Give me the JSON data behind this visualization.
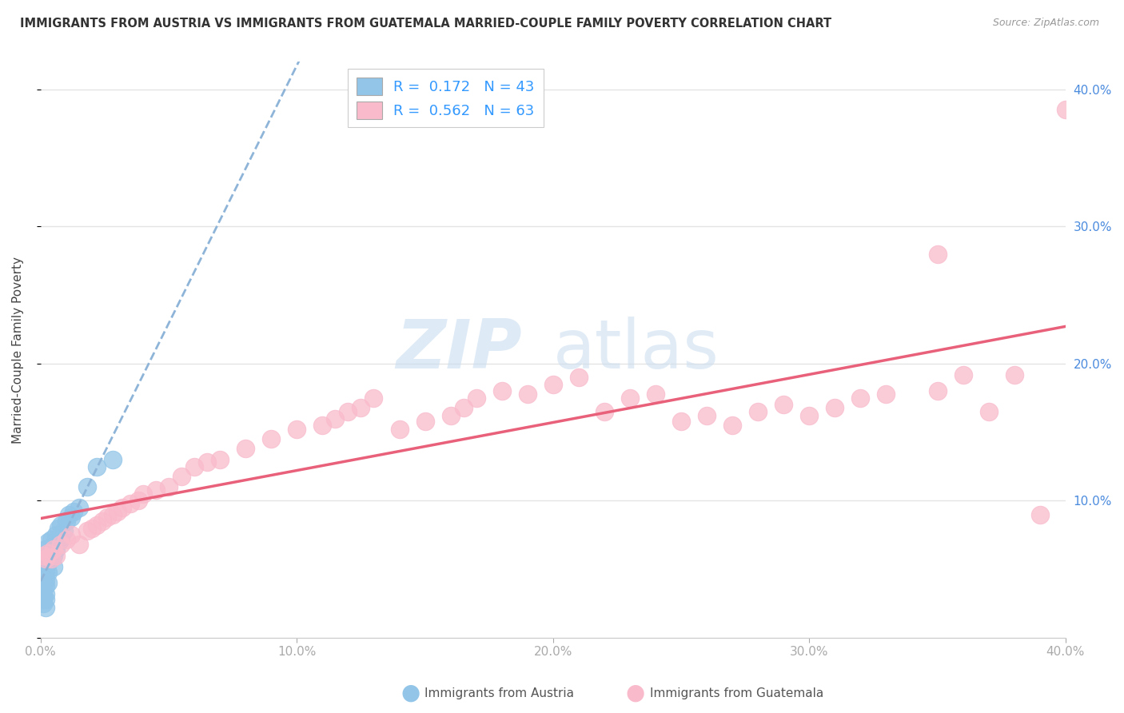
{
  "title": "IMMIGRANTS FROM AUSTRIA VS IMMIGRANTS FROM GUATEMALA MARRIED-COUPLE FAMILY POVERTY CORRELATION CHART",
  "source": "Source: ZipAtlas.com",
  "ylabel": "Married-Couple Family Poverty",
  "xlim": [
    0.0,
    0.4
  ],
  "ylim": [
    0.0,
    0.42
  ],
  "xticks": [
    0.0,
    0.1,
    0.2,
    0.3,
    0.4
  ],
  "yticks": [
    0.1,
    0.2,
    0.3,
    0.4
  ],
  "xticklabels": [
    "0.0%",
    "10.0%",
    "20.0%",
    "30.0%",
    "40.0%"
  ],
  "right_yticklabels": [
    "10.0%",
    "20.0%",
    "30.0%",
    "40.0%"
  ],
  "legend_labels": [
    "Immigrants from Austria",
    "Immigrants from Guatemala"
  ],
  "austria_color": "#92C5E8",
  "guatemala_color": "#F9BBCC",
  "austria_line_color": "#3B6FBA",
  "guatemala_line_color": "#E8607A",
  "austria_R": 0.172,
  "austria_N": 43,
  "guatemala_R": 0.562,
  "guatemala_N": 63,
  "background_color": "#ffffff",
  "grid_color": "#e4e4e4",
  "tick_color_left": "#aaaaaa",
  "tick_color_right": "#4B8BDE",
  "watermark_zip_color": "#C8DCF0",
  "watermark_atlas_color": "#C8DCF0",
  "austria_x": [
    0.001,
    0.001,
    0.001,
    0.001,
    0.001,
    0.001,
    0.001,
    0.001,
    0.002,
    0.002,
    0.002,
    0.002,
    0.002,
    0.002,
    0.002,
    0.002,
    0.002,
    0.003,
    0.003,
    0.003,
    0.003,
    0.003,
    0.004,
    0.004,
    0.004,
    0.005,
    0.005,
    0.005,
    0.006,
    0.006,
    0.007,
    0.007,
    0.008,
    0.008,
    0.009,
    0.01,
    0.011,
    0.012,
    0.013,
    0.015,
    0.018,
    0.022,
    0.028
  ],
  "austria_y": [
    0.06,
    0.055,
    0.05,
    0.045,
    0.04,
    0.035,
    0.03,
    0.025,
    0.065,
    0.058,
    0.052,
    0.048,
    0.042,
    0.038,
    0.032,
    0.028,
    0.022,
    0.07,
    0.062,
    0.055,
    0.048,
    0.04,
    0.072,
    0.065,
    0.058,
    0.068,
    0.06,
    0.052,
    0.075,
    0.065,
    0.08,
    0.07,
    0.082,
    0.072,
    0.078,
    0.085,
    0.09,
    0.088,
    0.092,
    0.095,
    0.11,
    0.125,
    0.13
  ],
  "guatemala_x": [
    0.001,
    0.002,
    0.003,
    0.004,
    0.005,
    0.006,
    0.008,
    0.01,
    0.012,
    0.015,
    0.018,
    0.02,
    0.022,
    0.024,
    0.026,
    0.028,
    0.03,
    0.032,
    0.035,
    0.038,
    0.04,
    0.045,
    0.05,
    0.055,
    0.06,
    0.065,
    0.07,
    0.08,
    0.09,
    0.1,
    0.11,
    0.115,
    0.12,
    0.125,
    0.13,
    0.14,
    0.15,
    0.16,
    0.165,
    0.17,
    0.18,
    0.19,
    0.2,
    0.21,
    0.22,
    0.23,
    0.24,
    0.25,
    0.26,
    0.27,
    0.28,
    0.29,
    0.3,
    0.31,
    0.32,
    0.33,
    0.35,
    0.36,
    0.37,
    0.38,
    0.39,
    0.4,
    0.35
  ],
  "guatemala_y": [
    0.06,
    0.058,
    0.062,
    0.058,
    0.065,
    0.06,
    0.068,
    0.072,
    0.075,
    0.068,
    0.078,
    0.08,
    0.082,
    0.085,
    0.088,
    0.09,
    0.092,
    0.095,
    0.098,
    0.1,
    0.105,
    0.108,
    0.11,
    0.118,
    0.125,
    0.128,
    0.13,
    0.138,
    0.145,
    0.152,
    0.155,
    0.16,
    0.165,
    0.168,
    0.175,
    0.152,
    0.158,
    0.162,
    0.168,
    0.175,
    0.18,
    0.178,
    0.185,
    0.19,
    0.165,
    0.175,
    0.178,
    0.158,
    0.162,
    0.155,
    0.165,
    0.17,
    0.162,
    0.168,
    0.175,
    0.178,
    0.18,
    0.192,
    0.165,
    0.192,
    0.09,
    0.385,
    0.28
  ]
}
